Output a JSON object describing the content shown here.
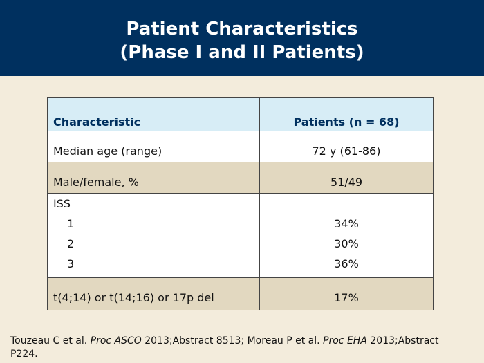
{
  "title": {
    "line1": "Patient Characteristics",
    "line2": "(Phase I and II Patients)"
  },
  "table": {
    "headers": [
      "Characteristic",
      "Patients (n = 68)"
    ],
    "rows": [
      {
        "label": "Median age (range)",
        "value": "72 y (61-86)"
      },
      {
        "label": "Male/female, %",
        "value": "51/49"
      },
      {
        "label": "ISS",
        "sub": [
          {
            "label": "1",
            "value": "34%"
          },
          {
            "label": "2",
            "value": "30%"
          },
          {
            "label": "3",
            "value": "36%"
          }
        ]
      },
      {
        "label": "t(4;14) or t(14;16) or 17p del",
        "value": "17%"
      }
    ]
  },
  "citation": {
    "part1": "Touzeau C et al. ",
    "journal1": "Proc ASCO",
    "part2": " 2013;Abstract 8513; Moreau P et al. ",
    "journal2": "Proc EHA",
    "part3": " 2013;Abstract P224."
  },
  "colors": {
    "header_bg": "#00305f",
    "table_header_bg": "#d7edf6",
    "row_tan": "#e2d8c0",
    "page_bg": "#f3ecdc"
  }
}
